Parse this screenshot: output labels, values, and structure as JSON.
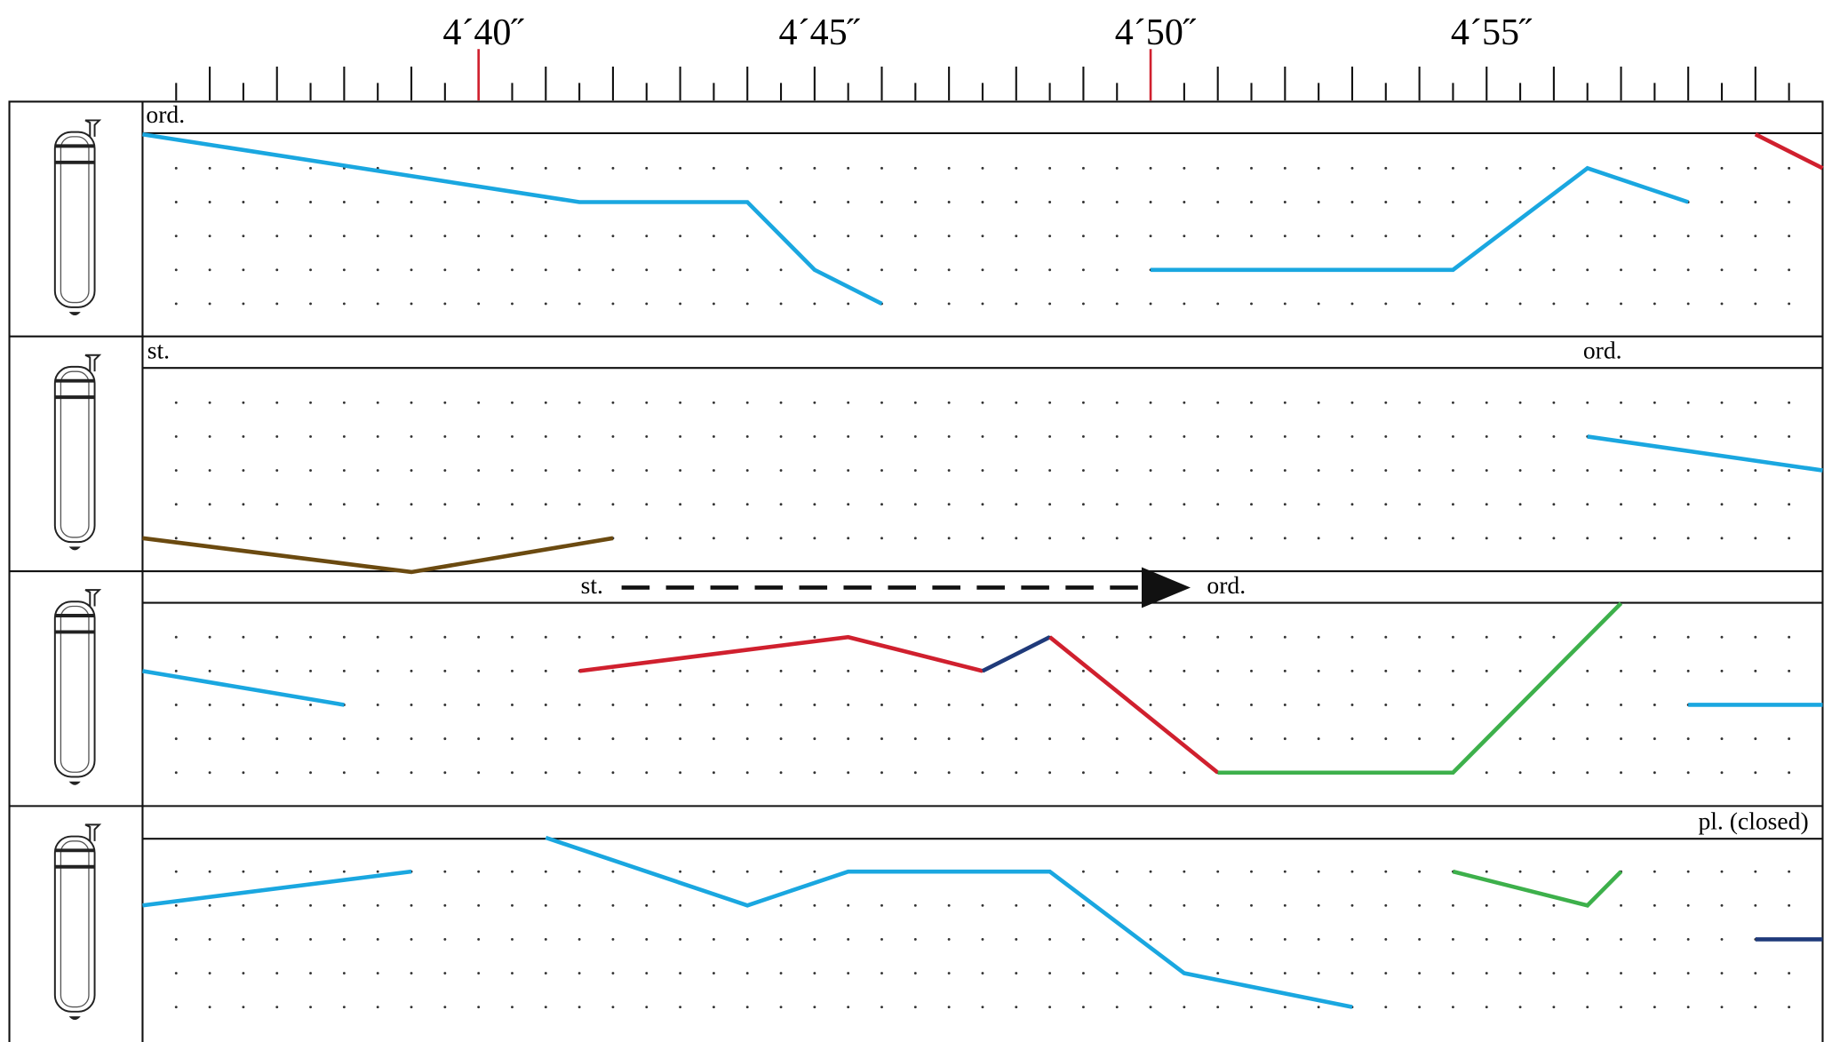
{
  "ruler": {
    "xlim": [
      275,
      300
    ],
    "xticks": [
      275.5,
      276,
      276.5,
      277,
      277.5,
      278,
      278.5,
      279,
      279.5,
      {
        "value": 280,
        "label": "4´40˝"
      },
      280.5,
      281,
      281.5,
      282,
      282.5,
      283,
      283.5,
      284,
      284.5,
      {
        "value": 285,
        "label": "4´45˝"
      },
      285.5,
      286,
      286.5,
      287,
      287.5,
      288,
      288.5,
      289,
      289.5,
      {
        "value": 290,
        "label": "4´50˝"
      },
      290.5,
      291,
      291.5,
      292,
      292.5,
      293,
      293.5,
      294,
      294.5,
      {
        "value": 295,
        "label": "4´55˝"
      },
      295.5,
      296,
      296.5,
      297,
      297.5,
      298,
      298.5,
      299,
      299.5
    ],
    "red_ticks": [
      280,
      290
    ]
  },
  "staves": [
    {
      "labels": [
        "ord."
      ],
      "lines": [
        {
          "color": "#1aa7e0",
          "x": [
            275,
            281.5,
            284,
            285,
            286
          ],
          "y": [
            5,
            3,
            3,
            1,
            0
          ]
        },
        {
          "color": "#1aa7e0",
          "x": [
            290,
            294.5,
            296.5,
            298
          ],
          "y": [
            1,
            1,
            4,
            3
          ]
        },
        {
          "color": "#d0202e",
          "x": [
            299,
            300
          ],
          "y": [
            5,
            4
          ]
        }
      ]
    },
    {
      "labels": [
        "st.",
        "ord."
      ],
      "lines": [
        {
          "color": "#1aa7e0",
          "x": [
            296.5,
            300
          ],
          "y": [
            3,
            2
          ]
        },
        {
          "color": "#6b4a10",
          "x": [
            275,
            279,
            282
          ],
          "y": [
            0,
            -1,
            0
          ]
        }
      ]
    },
    {
      "labels": [
        "st.",
        "ord."
      ],
      "lines": [
        {
          "color": "#1aa7e0",
          "x": [
            275,
            278
          ],
          "y": [
            3,
            2
          ]
        },
        {
          "color": "#d0202e",
          "x": [
            281.5,
            285.5,
            287.5
          ],
          "y": [
            3,
            4,
            3
          ]
        },
        {
          "color": "#1f3a7a",
          "x": [
            287.5,
            288.5
          ],
          "y": [
            3,
            4
          ]
        },
        {
          "color": "#d0202e",
          "x": [
            288.5,
            291
          ],
          "y": [
            4,
            0
          ]
        },
        {
          "color": "#3db04b",
          "x": [
            291,
            294.5,
            297
          ],
          "y": [
            0,
            0,
            5
          ]
        },
        {
          "color": "#1aa7e0",
          "x": [
            298,
            300
          ],
          "y": [
            2,
            2
          ]
        }
      ]
    },
    {
      "labels": [
        "pl. (closed)"
      ],
      "lines": [
        {
          "color": "#1aa7e0",
          "x": [
            275,
            279
          ],
          "y": [
            3,
            4
          ]
        },
        {
          "color": "#1aa7e0",
          "x": [
            281,
            284,
            285.5,
            288.5,
            290.5,
            293
          ],
          "y": [
            5,
            3,
            4,
            4,
            1,
            0
          ]
        },
        {
          "color": "#3db04b",
          "x": [
            294.5,
            296.5,
            297
          ],
          "y": [
            4,
            3,
            4
          ]
        },
        {
          "color": "#1f3a7a",
          "x": [
            299,
            300
          ],
          "y": [
            2,
            2
          ]
        }
      ]
    }
  ]
}
